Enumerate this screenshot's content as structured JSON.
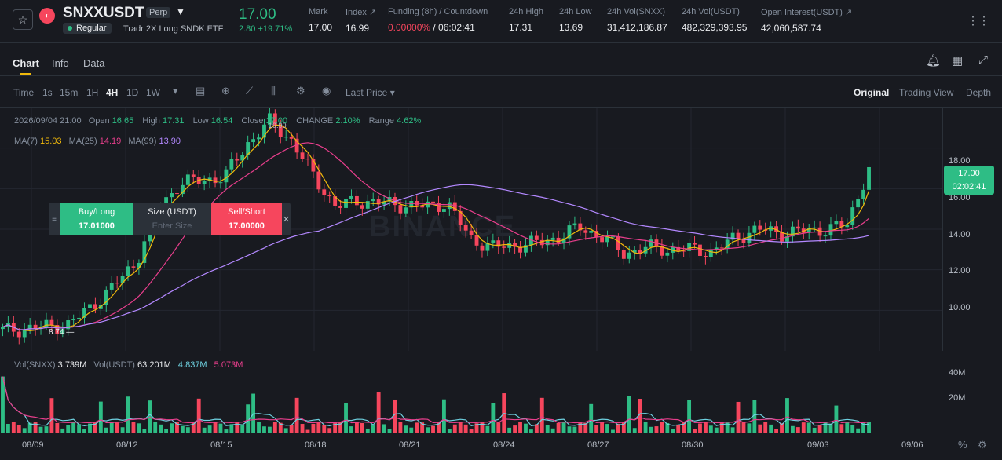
{
  "header": {
    "symbol": "SNXXUSDT",
    "perp_badge": "Perp",
    "regular_badge": "Regular",
    "description": "Tradr 2X Long SNDK ETF",
    "price": "17.00",
    "change": "2.80 +19.71%",
    "stats": [
      {
        "label": "Mark",
        "value": "17.00"
      },
      {
        "label": "Index ↗",
        "value": "16.99"
      },
      {
        "label": "Funding (8h) / Countdown",
        "value_red": "0.00000%",
        "value": "/ 06:02:41"
      },
      {
        "label": "24h High",
        "value": "17.31"
      },
      {
        "label": "24h Low",
        "value": "13.69"
      },
      {
        "label": "24h Vol(SNXX)",
        "value": "31,412,186.87"
      },
      {
        "label": "24h Vol(USDT)",
        "value": "482,329,393.95"
      },
      {
        "label": "Open Interest(USDT) ↗",
        "value": "42,060,587.74"
      }
    ]
  },
  "tabs": [
    "Chart",
    "Info",
    "Data"
  ],
  "toolbar": {
    "intervals": [
      "Time",
      "1s",
      "15m",
      "1H",
      "4H",
      "1D",
      "1W"
    ],
    "active_interval": "4H",
    "last_price": "Last Price",
    "views": [
      "Original",
      "Trading View",
      "Depth"
    ],
    "active_view": "Original"
  },
  "legend": {
    "date": "2026/09/04 21:00",
    "open_label": "Open",
    "open": "16.65",
    "high_label": "High",
    "high": "17.31",
    "low_label": "Low",
    "low": "16.54",
    "close_label": "Close",
    "close": "17.00",
    "change_label": "CHANGE",
    "change": "2.10%",
    "range_label": "Range",
    "range": "4.62%",
    "ma7_label": "MA(7)",
    "ma7": "15.03",
    "ma25_label": "MA(25)",
    "ma25": "14.19",
    "ma99_label": "MA(99)",
    "ma99": "13.90"
  },
  "order_panel": {
    "buy_label": "Buy/Long",
    "buy_price": "17.01000",
    "size_label": "Size (USDT)",
    "size_placeholder": "Enter Size",
    "sell_label": "Sell/Short",
    "sell_price": "17.00000"
  },
  "price_tag": {
    "price": "17.00",
    "countdown": "02:02:41"
  },
  "high_marker": "19.90",
  "low_marker": "8.74",
  "volume_legend": {
    "vol_snxx_label": "Vol(SNXX)",
    "vol_snxx": "3.739M",
    "vol_usdt_label": "Vol(USDT)",
    "vol_usdt": "63.201M",
    "ma_a": "4.837M",
    "ma_b": "5.073M"
  },
  "colors": {
    "up": "#2ebd85",
    "down": "#f6465d",
    "ma7": "#f0b90b",
    "ma25": "#e83e8c",
    "ma99": "#b388ff"
  },
  "chart_data": {
    "type": "candlestick",
    "y_axis_ticks": [
      "18.00",
      "16.00",
      "14.00",
      "12.00",
      "10.00"
    ],
    "volume_axis_ticks": [
      "40M",
      "20M"
    ],
    "x_axis_ticks": [
      "08/09",
      "08/12",
      "08/15",
      "08/18",
      "08/21",
      "08/24",
      "08/27",
      "08/30",
      "09/03",
      "09/06"
    ],
    "ylim": [
      8,
      20
    ],
    "series": [
      {
        "name": "MA(7)",
        "color": "#f0b90b"
      },
      {
        "name": "MA(25)",
        "color": "#e83e8c"
      },
      {
        "name": "MA(99)",
        "color": "#b388ff"
      }
    ],
    "close_approx": [
      9.0,
      9.1,
      9.2,
      9.3,
      10.2,
      11.2,
      12.4,
      15.0,
      16.3,
      16.4,
      16.6,
      18.2,
      19.3,
      18.4,
      16.6,
      15.1,
      15.4,
      15.3,
      15.2,
      15.1,
      15.3,
      13.6,
      13.1,
      13.2,
      13.3,
      13.6,
      14.1,
      13.6,
      12.8,
      13.1,
      13.0,
      13.0,
      12.9,
      13.6,
      14.0,
      13.8,
      13.9,
      14.0,
      14.2,
      17.0
    ]
  },
  "watermark": "BINANCE"
}
